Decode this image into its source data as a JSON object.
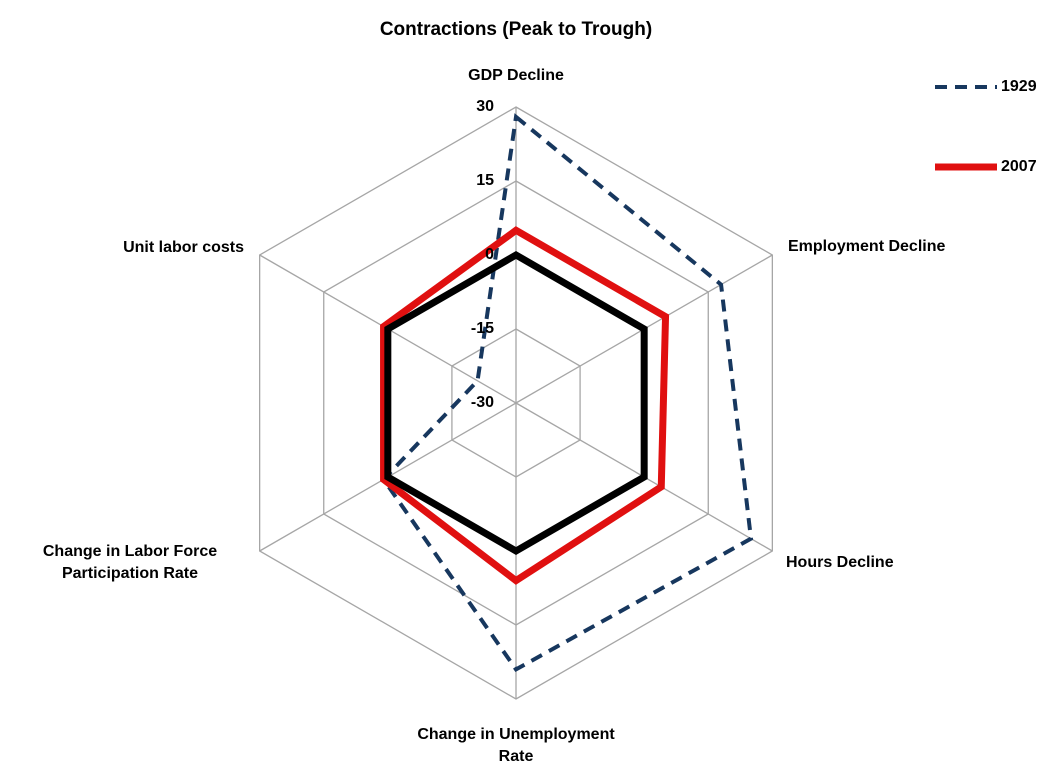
{
  "chart_data": {
    "type": "radar",
    "title": "Contractions (Peak to Trough)",
    "categories": [
      "GDP Decline",
      "Employment Decline",
      "Hours Decline",
      "Change in Unemployment\nRate",
      "Change in Labor Force\nParticipation Rate",
      "Unit labor costs"
    ],
    "series": [
      {
        "name": "1929",
        "color": "#17375e",
        "dash": true,
        "values": [
          28,
          18,
          25,
          24,
          1,
          -21
        ]
      },
      {
        "name": "2007",
        "color": "#e01010",
        "values": [
          5,
          5,
          4,
          6,
          1,
          1
        ]
      },
      {
        "color": "#000000",
        "values": [
          0,
          0,
          0,
          0,
          0,
          0
        ]
      }
    ],
    "ylim": [
      -30,
      30
    ],
    "yticks": [
      -30,
      -15,
      0,
      15,
      30
    ],
    "grid": true,
    "legend": "top-right"
  }
}
